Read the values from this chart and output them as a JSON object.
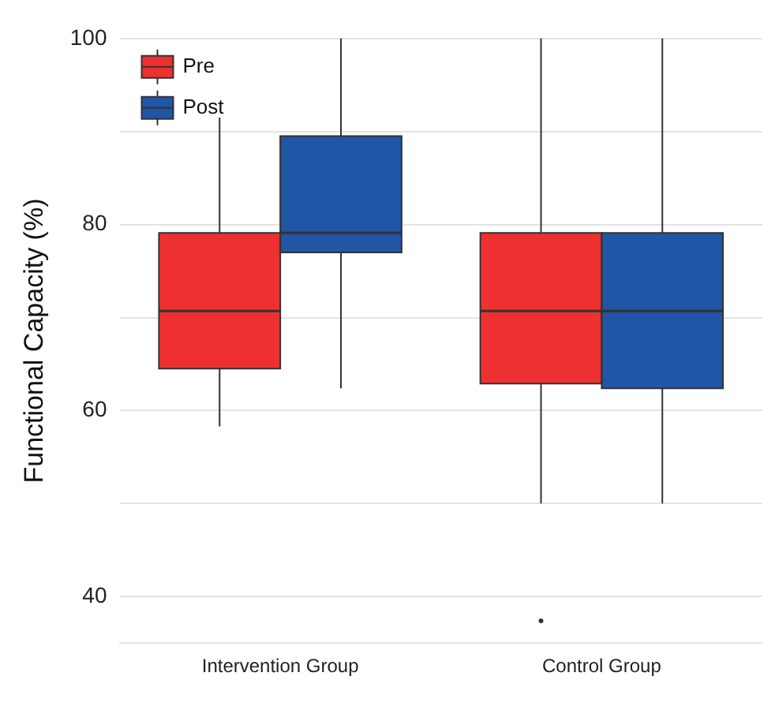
{
  "chart_data": {
    "type": "box",
    "ylabel": "Functional Capacity (%)",
    "categories": [
      "Intervention Group",
      "Control Group"
    ],
    "series": [
      {
        "name": "Pre",
        "color": "#ee3030",
        "boxes": [
          {
            "low": 58.3,
            "q1": 64.5,
            "median": 70.7,
            "q3": 79.1,
            "high": 91.5
          },
          {
            "low": 50,
            "q1": 62.9,
            "median": 70.7,
            "q3": 79.1,
            "high": 100,
            "outliers": [
              37.4
            ]
          }
        ]
      },
      {
        "name": "Post",
        "color": "#2155a5",
        "boxes": [
          {
            "low": 62.4,
            "q1": 77,
            "median": 79.1,
            "q3": 89.5,
            "high": 100
          },
          {
            "low": 50,
            "q1": 62.4,
            "median": 70.7,
            "q3": 79.1,
            "high": 100
          }
        ]
      }
    ],
    "ylim": [
      35,
      100
    ],
    "yticks": [
      {
        "value": 40,
        "label": "40"
      },
      {
        "value": 50,
        "label": null
      },
      {
        "value": 60,
        "label": "60"
      },
      {
        "value": 70,
        "label": null
      },
      {
        "value": 80,
        "label": "80"
      },
      {
        "value": 90,
        "label": null
      },
      {
        "value": 100,
        "label": "100"
      }
    ],
    "grid": "y",
    "legend": "top left"
  }
}
